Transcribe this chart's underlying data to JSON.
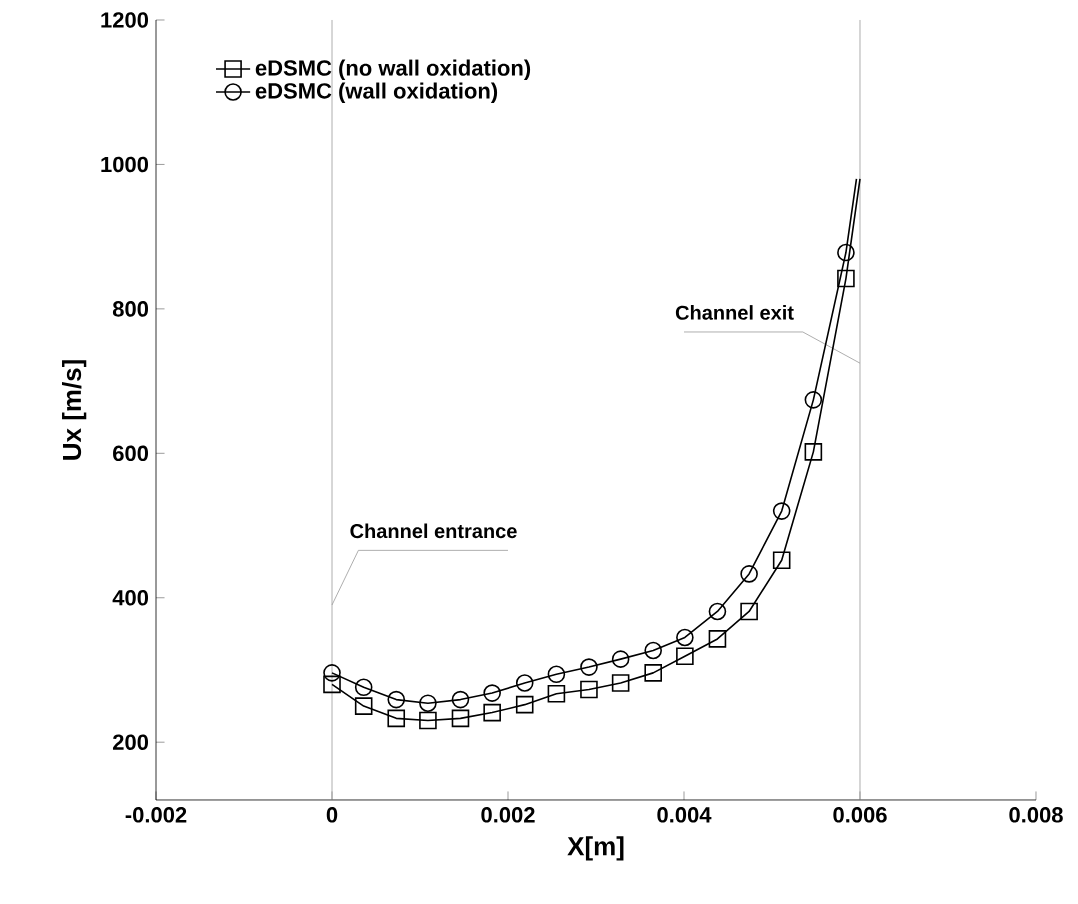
{
  "chart_data": {
    "type": "line",
    "xlabel": "X[m]",
    "ylabel": "Ux [m/s]",
    "xlim": [
      -0.002,
      0.008
    ],
    "ylim": [
      120,
      1200
    ],
    "xticks": [
      {
        "value": -0.002,
        "label": "-0.002"
      },
      0,
      {
        "value": 0.002,
        "label": "0.002"
      },
      {
        "value": 0.004,
        "label": "0.004"
      },
      {
        "value": 0.006,
        "label": "0.006"
      },
      {
        "value": 0.008,
        "label": "0.008"
      }
    ],
    "yticks": [
      200,
      400,
      600,
      800,
      1000,
      1200
    ],
    "legend": "top left",
    "grid": false,
    "series": [
      {
        "type": "line",
        "color": "#000000",
        "marker": "none",
        "x": [
          0,
          0.00036,
          0.00073,
          0.00109,
          0.00146,
          0.00182,
          0.00219,
          0.00255,
          0.00292,
          0.00328,
          0.00365,
          0.00401,
          0.00438,
          0.00474,
          0.00511,
          0.00547,
          0.00584,
          0.006
        ],
        "values": [
          280,
          250,
          233,
          230,
          233,
          241,
          252,
          267,
          273,
          282,
          296,
          319,
          343,
          381,
          452,
          602,
          842,
          980
        ]
      },
      {
        "type": "line",
        "color": "#000000",
        "marker": "none",
        "x": [
          0,
          0.00036,
          0.00073,
          0.00109,
          0.00146,
          0.00182,
          0.00219,
          0.00255,
          0.00292,
          0.00328,
          0.00365,
          0.00401,
          0.00438,
          0.00474,
          0.00511,
          0.00547,
          0.00584,
          0.00596
        ],
        "values": [
          296,
          276,
          259,
          254,
          259,
          268,
          282,
          294,
          304,
          315,
          327,
          345,
          381,
          433,
          520,
          674,
          878,
          980
        ]
      },
      {
        "type": "scatter",
        "name": "eDSMC (no wall oxidation)",
        "color": "#000000",
        "marker": "square",
        "x": [
          0,
          0.00036,
          0.00073,
          0.00109,
          0.00146,
          0.00182,
          0.00219,
          0.00255,
          0.00292,
          0.00328,
          0.00365,
          0.00401,
          0.00438,
          0.00474,
          0.00511,
          0.00547,
          0.00584
        ],
        "values": [
          280,
          250,
          233,
          230,
          233,
          241,
          252,
          267,
          273,
          282,
          296,
          319,
          343,
          381,
          452,
          602,
          842
        ]
      },
      {
        "type": "scatter",
        "name": "eDSMC (wall oxidation)",
        "color": "#000000",
        "marker": "circle",
        "x": [
          0,
          0.00036,
          0.00073,
          0.00109,
          0.00146,
          0.00182,
          0.00219,
          0.00255,
          0.00292,
          0.00328,
          0.00365,
          0.00401,
          0.00438,
          0.00474,
          0.00511,
          0.00547,
          0.00584
        ],
        "values": [
          296,
          276,
          259,
          254,
          259,
          268,
          282,
          294,
          304,
          315,
          327,
          345,
          381,
          433,
          520,
          674,
          878
        ]
      }
    ],
    "ref_lines": [
      {
        "axis": "x",
        "value": 0,
        "label": "Channel  entrance",
        "color": "#999999"
      },
      {
        "axis": "x",
        "value": 0.006,
        "label": "Channel exit",
        "color": "#999999"
      }
    ]
  }
}
